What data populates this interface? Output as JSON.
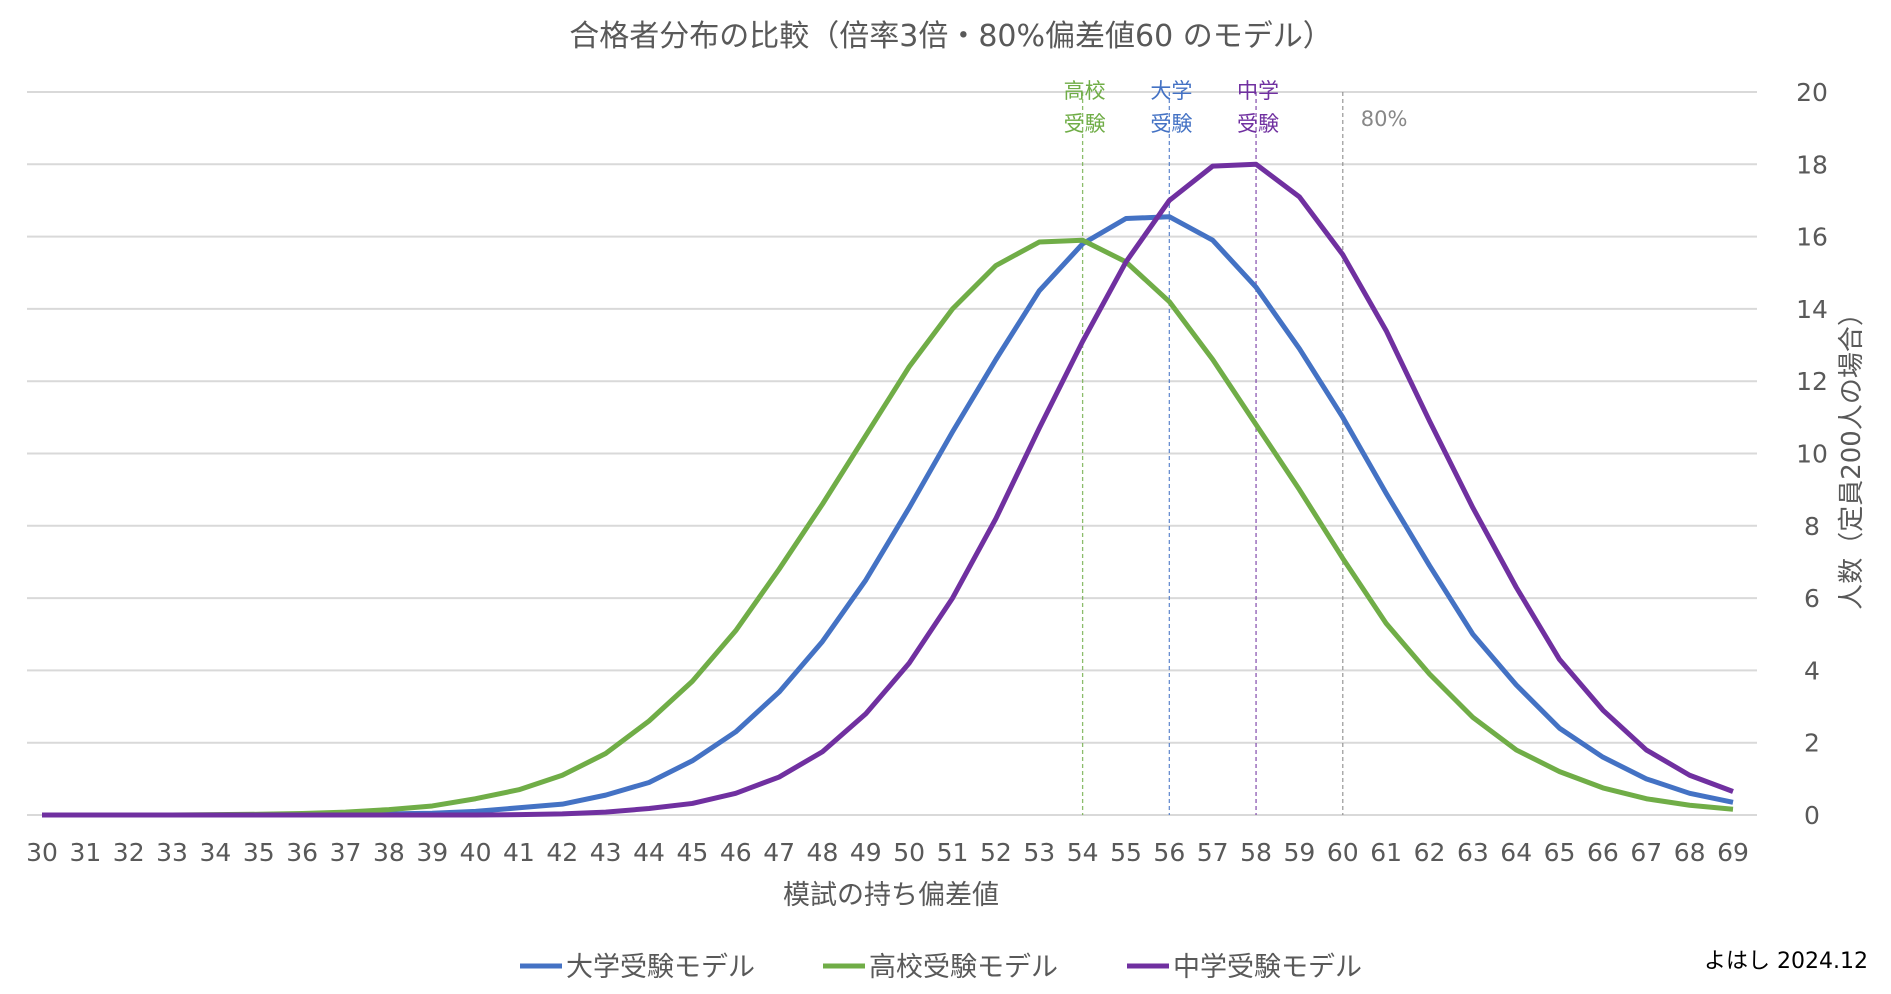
{
  "chart_data": {
    "type": "line",
    "title": "合格者分布の比較（倍率3倍・80%偏差値60 のモデル）",
    "xlabel": "模試の持ち偏差値",
    "ylabel": "人数（定員200人の場合）",
    "ylim": [
      0,
      20
    ],
    "yticks": [
      0,
      2,
      4,
      6,
      8,
      10,
      12,
      14,
      16,
      18,
      20
    ],
    "y_axis_side": "right",
    "grid": true,
    "legend_position": "bottom",
    "x": [
      30,
      31,
      32,
      33,
      34,
      35,
      36,
      37,
      38,
      39,
      40,
      41,
      42,
      43,
      44,
      45,
      46,
      47,
      48,
      49,
      50,
      51,
      52,
      53,
      54,
      55,
      56,
      57,
      58,
      59,
      60,
      61,
      62,
      63,
      64,
      65,
      66,
      67,
      68,
      69
    ],
    "series": [
      {
        "name": "大学受験モデル",
        "color": "#4472C4",
        "values": [
          0,
          0,
          0,
          0,
          0,
          0,
          0.01,
          0.02,
          0.03,
          0.05,
          0.1,
          0.2,
          0.3,
          0.55,
          0.9,
          1.5,
          2.3,
          3.4,
          4.8,
          6.5,
          8.5,
          10.6,
          12.6,
          14.5,
          15.8,
          16.5,
          16.55,
          15.9,
          14.6,
          12.9,
          11.0,
          8.9,
          6.9,
          5.0,
          3.6,
          2.4,
          1.6,
          1.0,
          0.6,
          0.35
        ]
      },
      {
        "name": "高校受験モデル",
        "color": "#70AD47",
        "values": [
          0,
          0,
          0,
          0,
          0.01,
          0.02,
          0.04,
          0.08,
          0.15,
          0.25,
          0.45,
          0.7,
          1.1,
          1.7,
          2.6,
          3.7,
          5.1,
          6.8,
          8.6,
          10.5,
          12.4,
          14.0,
          15.2,
          15.85,
          15.9,
          15.3,
          14.2,
          12.6,
          10.8,
          9.0,
          7.1,
          5.3,
          3.9,
          2.7,
          1.8,
          1.2,
          0.75,
          0.45,
          0.27,
          0.16
        ]
      },
      {
        "name": "中学受験モデル",
        "color": "#7030A0",
        "values": [
          0,
          0,
          0,
          0,
          0,
          0,
          0,
          0,
          0,
          0,
          0,
          0.01,
          0.03,
          0.08,
          0.18,
          0.32,
          0.6,
          1.05,
          1.75,
          2.8,
          4.2,
          6.0,
          8.2,
          10.7,
          13.1,
          15.3,
          17.0,
          17.95,
          18.0,
          17.1,
          15.5,
          13.4,
          10.9,
          8.5,
          6.3,
          4.3,
          2.9,
          1.8,
          1.1,
          0.65
        ]
      }
    ],
    "annotations": [
      {
        "x": 54,
        "lines": [
          "高校",
          "受験"
        ],
        "color": "#70AD47"
      },
      {
        "x": 56,
        "lines": [
          "大学",
          "受験"
        ],
        "color": "#4472C4"
      },
      {
        "x": 58,
        "lines": [
          "中学",
          "受験"
        ],
        "color": "#7030A0"
      },
      {
        "x": 60,
        "lines": [
          "80%"
        ],
        "color": "#888888"
      }
    ]
  },
  "signature": "よはし 2024.12"
}
